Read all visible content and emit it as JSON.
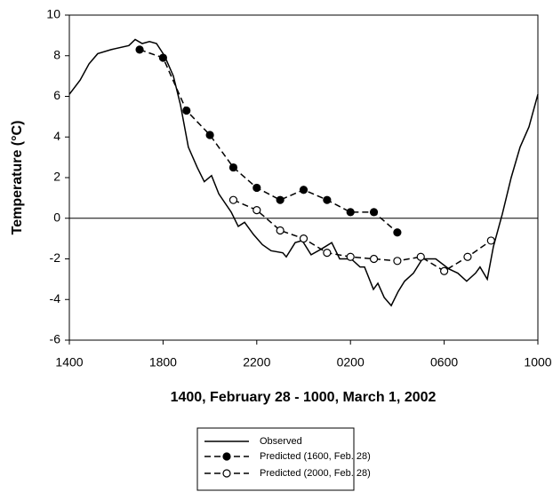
{
  "chart_data": {
    "type": "line",
    "x_label": "1400, February 28 - 1000, March 1, 2002",
    "y_label": "Temperature (°C)",
    "xlim": [
      14,
      34
    ],
    "xticks": [
      {
        "value": 14,
        "label": "1400"
      },
      {
        "value": 18,
        "label": "1800"
      },
      {
        "value": 22,
        "label": "2200"
      },
      {
        "value": 26,
        "label": "0200"
      },
      {
        "value": 30,
        "label": "0600"
      },
      {
        "value": 34,
        "label": "1000"
      }
    ],
    "ylim": [
      -6,
      10
    ],
    "yticks": [
      -6,
      -4,
      -2,
      0,
      2,
      4,
      6,
      8,
      10
    ],
    "zero_line": true,
    "series": [
      {
        "name": "Observed",
        "color": "#000000",
        "dash": false,
        "marker": "none",
        "x": [
          14.0,
          14.46,
          14.84,
          15.21,
          15.78,
          16.54,
          16.81,
          17.11,
          17.42,
          17.72,
          18.06,
          18.44,
          18.74,
          19.08,
          19.46,
          19.76,
          20.07,
          20.38,
          20.91,
          21.21,
          21.48,
          21.86,
          22.24,
          22.61,
          23.11,
          23.26,
          23.64,
          23.94,
          24.32,
          24.78,
          25.2,
          25.54,
          26.03,
          26.41,
          26.6,
          26.98,
          27.17,
          27.44,
          27.74,
          28.04,
          28.31,
          28.69,
          29.07,
          29.64,
          30.21,
          30.58,
          30.96,
          31.34,
          31.53,
          31.84,
          32.1,
          32.48,
          32.86,
          33.24,
          33.62,
          34.0
        ],
        "values": [
          6.1,
          6.8,
          7.6,
          8.1,
          8.3,
          8.5,
          8.8,
          8.6,
          8.7,
          8.6,
          8.0,
          7.0,
          5.6,
          3.5,
          2.5,
          1.8,
          2.1,
          1.2,
          0.3,
          -0.4,
          -0.2,
          -0.8,
          -1.3,
          -1.6,
          -1.7,
          -1.9,
          -1.2,
          -1.1,
          -1.8,
          -1.5,
          -1.2,
          -2.0,
          -2.0,
          -2.4,
          -2.4,
          -3.5,
          -3.2,
          -3.9,
          -4.3,
          -3.6,
          -3.1,
          -2.7,
          -2.0,
          -2.0,
          -2.5,
          -2.7,
          -3.1,
          -2.7,
          -2.4,
          -3.0,
          -1.4,
          0.2,
          2.0,
          3.5,
          4.5,
          6.1
        ]
      },
      {
        "name": "Predicted (1600, Feb. 28)",
        "color": "#000000",
        "dash": true,
        "marker": "filled",
        "x": [
          17,
          18,
          19,
          20,
          21,
          22,
          23,
          24,
          25,
          26,
          27,
          28
        ],
        "values": [
          8.3,
          7.9,
          5.3,
          4.1,
          2.5,
          1.5,
          0.9,
          1.4,
          0.9,
          0.3,
          0.3,
          -0.7
        ]
      },
      {
        "name": "Predicted (2000, Feb. 28)",
        "color": "#000000",
        "dash": true,
        "marker": "open",
        "x": [
          21,
          22,
          23,
          24,
          25,
          26,
          27,
          28,
          29,
          30,
          31,
          32
        ],
        "values": [
          0.9,
          0.4,
          -0.6,
          -1.0,
          -1.7,
          -1.9,
          -2.0,
          -2.1,
          -1.9,
          -2.6,
          -1.9,
          -1.1
        ]
      }
    ]
  }
}
